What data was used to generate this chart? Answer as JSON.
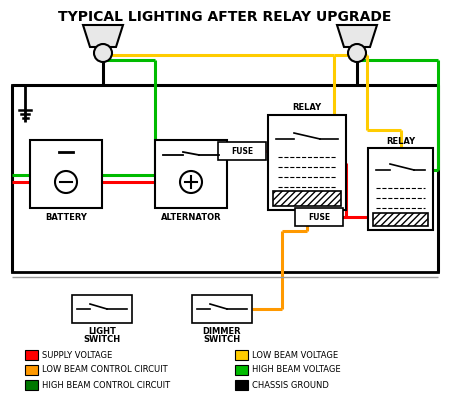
{
  "title": "TYPICAL LIGHTING AFTER RELAY UPGRADE",
  "title_fontsize": 10,
  "colors": {
    "black": "#000000",
    "red": "#ff0000",
    "orange": "#ff9900",
    "yellow": "#ffcc00",
    "green": "#00bb00",
    "gray": "#999999",
    "white": "#ffffff"
  },
  "legend_items": [
    {
      "label": "SUPPLY VOLTAGE",
      "color": "#ff0000"
    },
    {
      "label": "LOW BEAM CONTROL CIRCUIT",
      "color": "#ff9900"
    },
    {
      "label": "HIGH BEAM CONTROL CIRCUIT",
      "color": "#007700"
    },
    {
      "label": "LOW BEAM VOLTAGE",
      "color": "#ffcc00"
    },
    {
      "label": "HIGH BEAM VOLTAGE",
      "color": "#00bb00"
    },
    {
      "label": "CHASSIS GROUND",
      "color": "#000000"
    }
  ]
}
